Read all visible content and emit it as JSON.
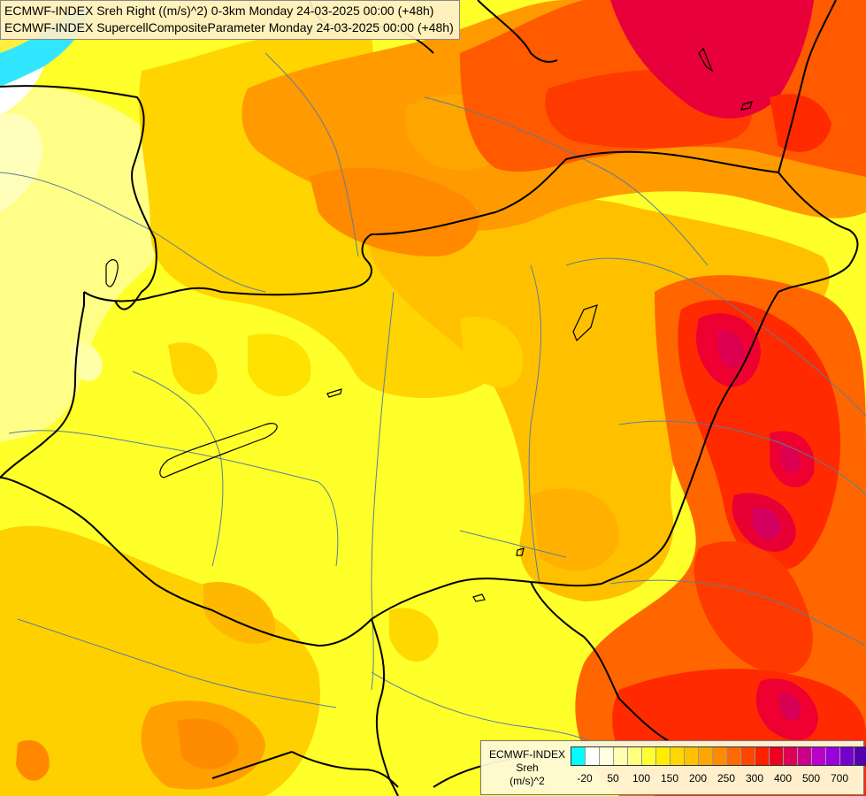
{
  "title": {
    "line1": "ECMWF-INDEX Sreh Right ((m/s)^2) 0-3km Monday 24-03-2025 00:00 (+48h)",
    "line2": "ECMWF-INDEX SupercellCompositeParameter Monday 24-03-2025 00:00 (+48h)"
  },
  "legend": {
    "model": "ECMWF-INDEX",
    "param": "Sreh",
    "unit": "(m/s)^2",
    "colors": [
      "#00ffff",
      "#ffffff",
      "#ffffe0",
      "#ffffb0",
      "#ffff80",
      "#ffff33",
      "#ffee00",
      "#ffd700",
      "#ffc000",
      "#ffa500",
      "#ff8c00",
      "#ff6a00",
      "#ff4500",
      "#ff2000",
      "#ee0022",
      "#dd0055",
      "#cc0088",
      "#bb00cc",
      "#9900dd",
      "#7700cc",
      "#5500aa",
      "#330099"
    ],
    "tick_labels": [
      "-20",
      "50",
      "100",
      "150",
      "200",
      "250",
      "300",
      "400",
      "500",
      "700"
    ]
  }
}
